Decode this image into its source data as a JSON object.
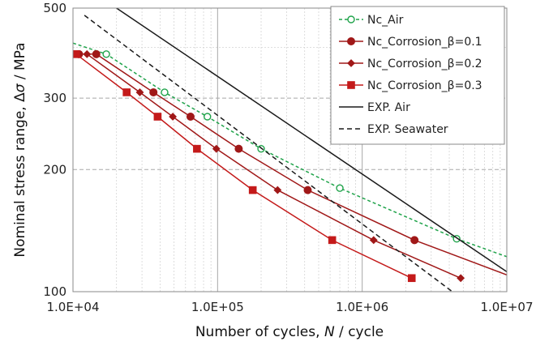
{
  "chart_data": {
    "type": "scatter",
    "x_scale": "log",
    "y_scale": "log",
    "xlim": [
      10000,
      10000000
    ],
    "ylim": [
      100,
      500
    ],
    "x_ticks": [
      10000,
      100000,
      1000000,
      10000000
    ],
    "x_tick_labels": [
      "1.0E+04",
      "1.0E+05",
      "1.0E+06",
      "1.0E+07"
    ],
    "y_ticks": [
      100,
      200,
      300,
      500
    ],
    "y_tick_labels": [
      "100",
      "200",
      "300",
      "500"
    ],
    "xlabel_pre": "Number of cycles, ",
    "xlabel_var": "N",
    "xlabel_post": " / cycle",
    "ylabel_pre": "Nominal stress range, Δ",
    "ylabel_var": "σ",
    "ylabel_post": " / MPa",
    "grid": true,
    "legend_position": "top-right",
    "series": [
      {
        "name": "Nc_Air",
        "color": "#1fa34a",
        "line_style": "dashed",
        "marker": "open-circle",
        "x": [
          17000,
          43000,
          85000,
          200000,
          700000,
          4500000
        ],
        "y": [
          385,
          310,
          270,
          225,
          180,
          135
        ],
        "curve_x": [
          10000,
          17000,
          43000,
          85000,
          200000,
          700000,
          4500000,
          10000000
        ],
        "curve_y": [
          410,
          385,
          310,
          270,
          225,
          180,
          135,
          122
        ]
      },
      {
        "name": "Nc_Corrosion_β=0.1",
        "color": "#a01818",
        "line_style": "solid",
        "marker": "circle",
        "x": [
          11000,
          14500,
          36000,
          65000,
          140000,
          420000,
          2300000
        ],
        "y": [
          385,
          385,
          310,
          270,
          225,
          178,
          134
        ],
        "curve_x": [
          11000,
          14500,
          36000,
          65000,
          140000,
          420000,
          2300000,
          10000000
        ],
        "curve_y": [
          385,
          385,
          310,
          270,
          225,
          178,
          134,
          110
        ]
      },
      {
        "name": "Nc_Corrosion_β=0.2",
        "color": "#a01818",
        "line_style": "solid",
        "marker": "diamond",
        "x": [
          12500,
          29000,
          49000,
          98000,
          260000,
          1200000,
          4800000
        ],
        "y": [
          385,
          310,
          270,
          225,
          178,
          134,
          108
        ],
        "curve_x": [
          12500,
          29000,
          49000,
          98000,
          260000,
          1200000,
          4800000
        ],
        "curve_y": [
          385,
          310,
          270,
          225,
          178,
          134,
          108
        ]
      },
      {
        "name": "Nc_Corrosion_β=0.3",
        "color": "#c41a1a",
        "line_style": "solid",
        "marker": "square",
        "x": [
          10500,
          23500,
          38500,
          72000,
          175000,
          620000,
          2200000
        ],
        "y": [
          385,
          310,
          270,
          225,
          178,
          134,
          108
        ],
        "curve_x": [
          10500,
          23500,
          38500,
          72000,
          175000,
          620000,
          2200000
        ],
        "curve_y": [
          385,
          310,
          270,
          225,
          178,
          134,
          108
        ]
      },
      {
        "name": "EXP. Air",
        "color": "#1a1a1a",
        "line_style": "solid",
        "marker": "none",
        "curve_x": [
          20000,
          10000000
        ],
        "curve_y": [
          500,
          112
        ]
      },
      {
        "name": "EXP. Seawater",
        "color": "#1a1a1a",
        "line_style": "dashed",
        "marker": "none",
        "curve_x": [
          12000,
          4200000
        ],
        "curve_y": [
          480,
          100
        ]
      }
    ]
  }
}
